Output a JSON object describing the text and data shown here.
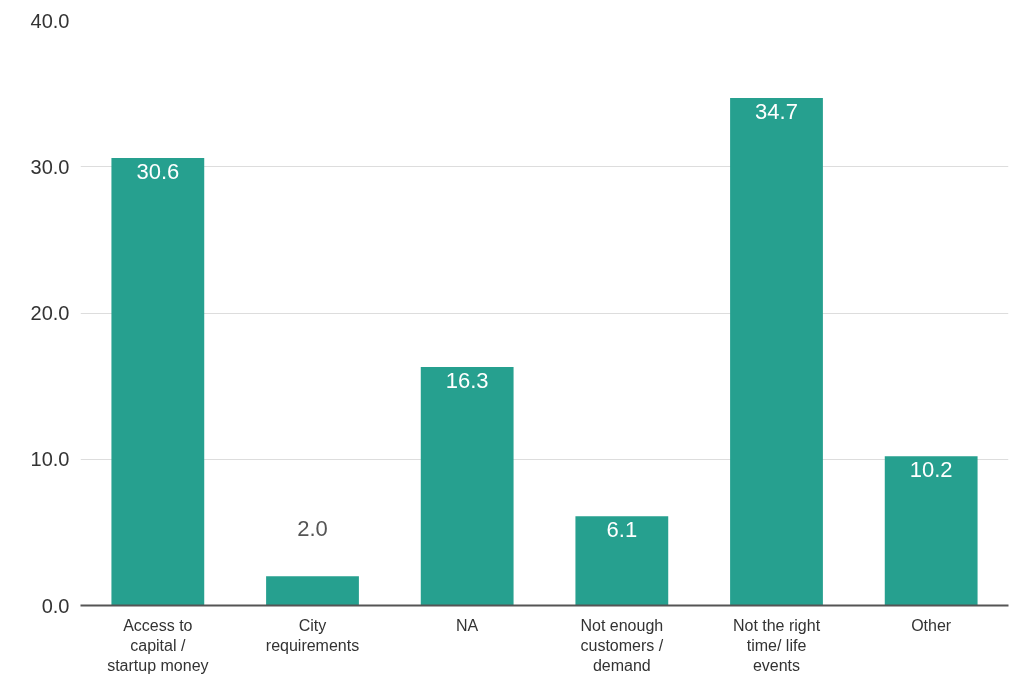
{
  "chart_data": {
    "type": "bar",
    "categories": [
      "Access to capital / startup money",
      "City requirements",
      "NA",
      "Not enough customers / demand",
      "Not the right time/ life events",
      "Other"
    ],
    "values": [
      30.6,
      2.0,
      16.3,
      6.1,
      34.7,
      10.2
    ],
    "value_labels": [
      "30.6",
      "2.0",
      "16.3",
      "6.1",
      "34.7",
      "10.2"
    ],
    "color": "#26a08f",
    "ylim": [
      0,
      40
    ],
    "yticks": [
      {
        "value": 0,
        "label": "0.0"
      },
      {
        "value": 10,
        "label": "10.0"
      },
      {
        "value": 20,
        "label": "20.0"
      },
      {
        "value": 30,
        "label": "30.0"
      },
      {
        "value": 40,
        "label": "40.0"
      }
    ],
    "grid": "y"
  }
}
